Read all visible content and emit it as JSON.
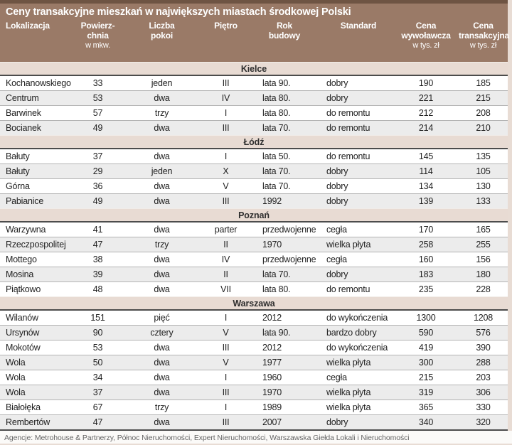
{
  "title": "Ceny transakcyjne mieszkań w największych miastach środkowej Polski",
  "footer_source": "Agencje: Metrohouse & Partnerzy, Północ Nieruchomości, Expert Nieruchomości, Warszawska Giełda Lokali i Nieruchomości",
  "colors": {
    "header_bg": "#9a7a67",
    "header_top_strip": "#6e5443",
    "section_row_bg": "#e8dbd3",
    "alt_row_bg": "#ececec",
    "row_rule": "#b3b3b3",
    "dark_rule": "#4c4c4c",
    "page_bg": "#e8dcd4",
    "header_text": "#ffffff",
    "body_text": "#1f1f1f"
  },
  "chart_data": {
    "type": "table",
    "title": "Ceny transakcyjne mieszkań w największych miastach środkowej Polski",
    "columns": [
      {
        "key": "lokalizacja",
        "label": "Lokalizacja",
        "lines": [
          "Lokalizacja"
        ],
        "unit": ""
      },
      {
        "key": "powierzchnia",
        "label": "Powierzchnia w mkw.",
        "lines": [
          "Powierz-",
          "chnia"
        ],
        "unit": "w mkw."
      },
      {
        "key": "liczba-pokoi",
        "label": "Liczba pokoi",
        "lines": [
          "Liczba",
          "pokoi"
        ],
        "unit": ""
      },
      {
        "key": "pietro",
        "label": "Piętro",
        "lines": [
          "Piętro"
        ],
        "unit": ""
      },
      {
        "key": "rok-budowy",
        "label": "Rok budowy",
        "lines": [
          "Rok",
          "budowy"
        ],
        "unit": ""
      },
      {
        "key": "standard",
        "label": "Standard",
        "lines": [
          "Standard"
        ],
        "unit": ""
      },
      {
        "key": "cena-wywolawcza",
        "label": "Cena wywoławcza w tys. zł",
        "lines": [
          "Cena",
          "wywoławcza"
        ],
        "unit": "w tys. zł"
      },
      {
        "key": "cena-transakcyjna",
        "label": "Cena transakcyjna w tys. zł",
        "lines": [
          "Cena",
          "transakcyjna"
        ],
        "unit": "w tys. zł"
      }
    ],
    "sections": [
      {
        "city": "Kielce",
        "rows": [
          [
            "Kochanowskiego",
            "33",
            "jeden",
            "III",
            "lata 90.",
            "dobry",
            "190",
            "185"
          ],
          [
            "Centrum",
            "53",
            "dwa",
            "IV",
            "lata 80.",
            "dobry",
            "221",
            "215"
          ],
          [
            "Barwinek",
            "57",
            "trzy",
            "I",
            "lata 80.",
            "do remontu",
            "212",
            "208"
          ],
          [
            "Bocianek",
            "49",
            "dwa",
            "III",
            "lata 70.",
            "do remontu",
            "214",
            "210"
          ]
        ]
      },
      {
        "city": "Łódź",
        "rows": [
          [
            "Bałuty",
            "37",
            "dwa",
            "I",
            "lata 50.",
            "do remontu",
            "145",
            "135"
          ],
          [
            "Bałuty",
            "29",
            "jeden",
            "X",
            "lata 70.",
            "dobry",
            "114",
            "105"
          ],
          [
            "Górna",
            "36",
            "dwa",
            "V",
            "lata 70.",
            "dobry",
            "134",
            "130"
          ],
          [
            "Pabianice",
            "49",
            "dwa",
            "III",
            "1992",
            "dobry",
            "139",
            "133"
          ]
        ]
      },
      {
        "city": "Poznań",
        "rows": [
          [
            "Warzywna",
            "41",
            "dwa",
            "parter",
            "przedwojenne",
            "cegła",
            "170",
            "165"
          ],
          [
            "Rzeczpospolitej",
            "47",
            "trzy",
            "II",
            "1970",
            "wielka płyta",
            "258",
            "255"
          ],
          [
            "Mottego",
            "38",
            "dwa",
            "IV",
            "przedwojenne",
            "cegła",
            "160",
            "156"
          ],
          [
            "Mosina",
            "39",
            "dwa",
            "II",
            "lata 70.",
            "dobry",
            "183",
            "180"
          ],
          [
            "Piątkowo",
            "48",
            "dwa",
            "VII",
            "lata 80.",
            "do remontu",
            "235",
            "228"
          ]
        ]
      },
      {
        "city": "Warszawa",
        "rows": [
          [
            "Wilanów",
            "151",
            "pięć",
            "I",
            "2012",
            "do wykończenia",
            "1300",
            "1208"
          ],
          [
            "Ursynów",
            "90",
            "cztery",
            "V",
            "lata 90.",
            "bardzo dobry",
            "590",
            "576"
          ],
          [
            "Mokotów",
            "53",
            "dwa",
            "III",
            "2012",
            "do wykończenia",
            "419",
            "390"
          ],
          [
            "Wola",
            "50",
            "dwa",
            "V",
            "1977",
            "wielka płyta",
            "300",
            "288"
          ],
          [
            "Wola",
            "34",
            "dwa",
            "I",
            "1960",
            "cegła",
            "215",
            "203"
          ],
          [
            "Wola",
            "37",
            "dwa",
            "III",
            "1970",
            "wielka płyta",
            "319",
            "306"
          ],
          [
            "Białołęka",
            "67",
            "trzy",
            "I",
            "1989",
            "wielka płyta",
            "365",
            "330"
          ],
          [
            "Rembertów",
            "47",
            "dwa",
            "III",
            "2007",
            "dobry",
            "340",
            "320"
          ]
        ]
      }
    ]
  }
}
